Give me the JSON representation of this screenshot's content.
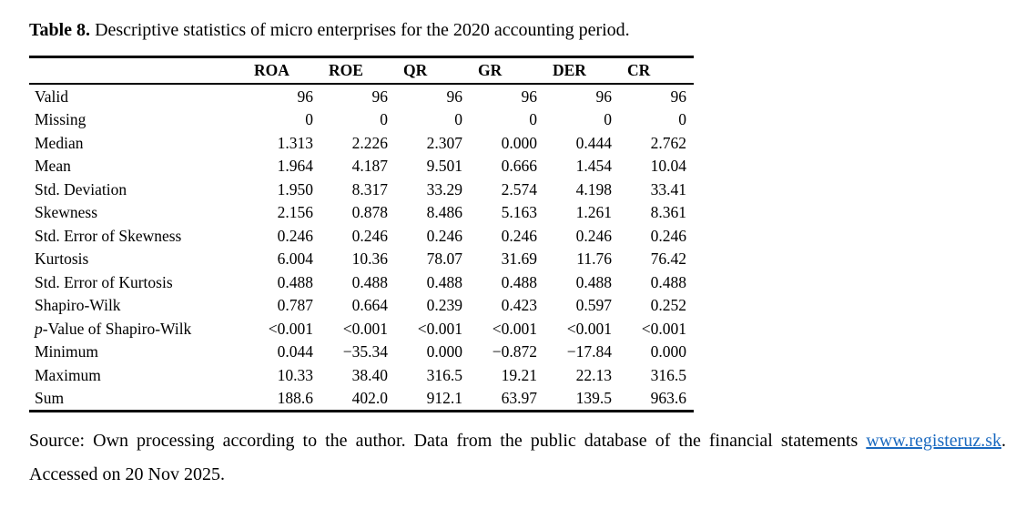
{
  "title": {
    "label": "Table 8.",
    "text": " Descriptive statistics of micro enterprises for the 2020 accounting period."
  },
  "table": {
    "columns": [
      "ROA",
      "ROE",
      "QR",
      "GR",
      "DER",
      "CR"
    ],
    "rows": [
      {
        "label": "Valid",
        "values": [
          "96",
          "96",
          "96",
          "96",
          "96",
          "96"
        ]
      },
      {
        "label": "Missing",
        "values": [
          "0",
          "0",
          "0",
          "0",
          "0",
          "0"
        ]
      },
      {
        "label": "Median",
        "values": [
          "1.313",
          "2.226",
          "2.307",
          "0.000",
          "0.444",
          "2.762"
        ]
      },
      {
        "label": "Mean",
        "values": [
          "1.964",
          "4.187",
          "9.501",
          "0.666",
          "1.454",
          "10.04"
        ]
      },
      {
        "label": "Std. Deviation",
        "values": [
          "1.950",
          "8.317",
          "33.29",
          "2.574",
          "4.198",
          "33.41"
        ]
      },
      {
        "label": "Skewness",
        "values": [
          "2.156",
          "0.878",
          "8.486",
          "5.163",
          "1.261",
          "8.361"
        ]
      },
      {
        "label": "Std. Error of Skewness",
        "values": [
          "0.246",
          "0.246",
          "0.246",
          "0.246",
          "0.246",
          "0.246"
        ]
      },
      {
        "label": "Kurtosis",
        "values": [
          "6.004",
          "10.36",
          "78.07",
          "31.69",
          "11.76",
          "76.42"
        ]
      },
      {
        "label": "Std. Error of Kurtosis",
        "values": [
          "0.488",
          "0.488",
          "0.488",
          "0.488",
          "0.488",
          "0.488"
        ]
      },
      {
        "label": "Shapiro-Wilk",
        "values": [
          "0.787",
          "0.664",
          "0.239",
          "0.423",
          "0.597",
          "0.252"
        ]
      },
      {
        "label": "p-Value of Shapiro-Wilk",
        "italic_prefix": 1,
        "values": [
          "<0.001",
          "<0.001",
          "<0.001",
          "<0.001",
          "<0.001",
          "<0.001"
        ]
      },
      {
        "label": "Minimum",
        "values": [
          "0.044",
          "−35.34",
          "0.000",
          "−0.872",
          "−17.84",
          "0.000"
        ]
      },
      {
        "label": "Maximum",
        "values": [
          "10.33",
          "38.40",
          "316.5",
          "19.21",
          "22.13",
          "316.5"
        ]
      },
      {
        "label": "Sum",
        "values": [
          "188.6",
          "402.0",
          "912.1",
          "63.97",
          "139.5",
          "963.6"
        ]
      }
    ]
  },
  "footer": {
    "text_before_link": "Source: Own processing according to the author. Data from the public database of the financial statements ",
    "link_text": "www.registeruz.sk",
    "text_after_link": ". Accessed on 20 Nov 2025.",
    "link_color": "#1B6AC0",
    "text_color": "#000000"
  }
}
